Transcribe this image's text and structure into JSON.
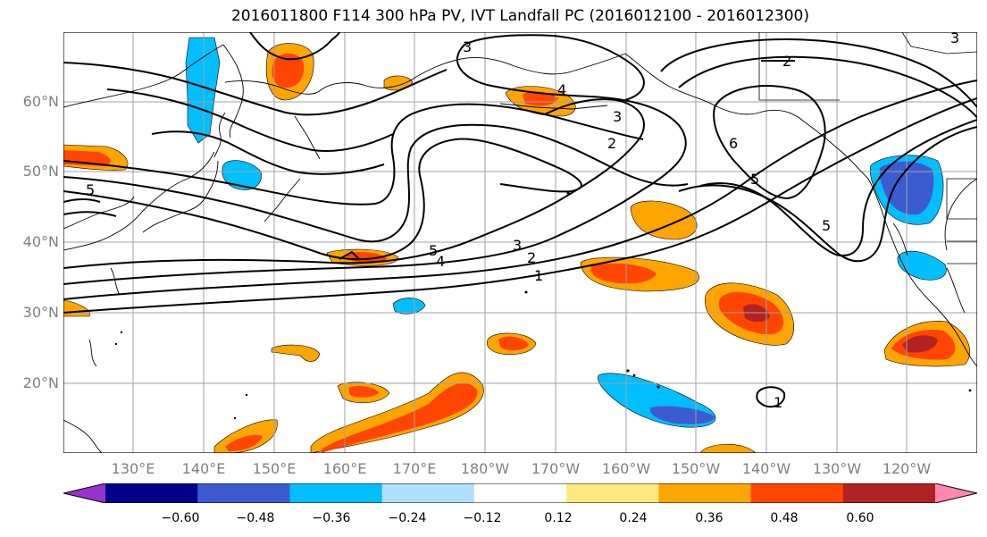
{
  "title": "2016011800 F114 300 hPa PV, IVT Landfall PC (2016012100 - 2016012300)",
  "map": {
    "lat_labels": [
      "60°N",
      "50°N",
      "40°N",
      "30°N",
      "20°N"
    ],
    "lon_labels": [
      "130°E",
      "140°E",
      "150°E",
      "160°E",
      "170°E",
      "180°W",
      "170°W",
      "160°W",
      "150°W",
      "140°W",
      "130°W",
      "120°W"
    ],
    "grid": true,
    "contour_variable": "300 hPa PV",
    "contour_labels": [
      "1",
      "2",
      "3",
      "4",
      "5",
      "6"
    ],
    "fill_variable": "IVT Landfall PC"
  },
  "colorbar": {
    "ticks": [
      "−0.60",
      "−0.48",
      "−0.36",
      "−0.24",
      "−0.12",
      "0.12",
      "0.24",
      "0.36",
      "0.48",
      "0.60"
    ],
    "colors": [
      "#9932cc",
      "#00008b",
      "#3c5bd0",
      "#00bfff",
      "#b0e0ff",
      "#ffffff",
      "#ffe97f",
      "#ffa500",
      "#ff4500",
      "#b22222",
      "#ff88b0"
    ],
    "extend": "both"
  }
}
